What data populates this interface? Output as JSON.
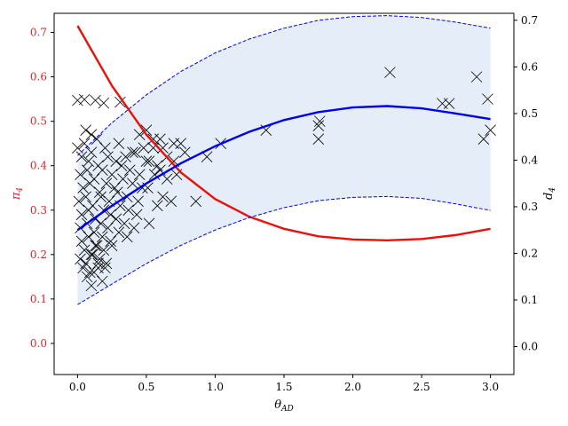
{
  "chart_data": {
    "type": "scatter",
    "title": "",
    "xlabel": "θAD",
    "xlabel_main": "θ",
    "xlabel_sub": "AD",
    "ylabel_left": "π4",
    "ylabel_left_main": "π",
    "ylabel_left_sub": "4",
    "ylabel_right": "d4",
    "ylabel_right_main": "d",
    "ylabel_right_sub": "4",
    "xlim": [
      -0.17,
      3.17
    ],
    "ylim_left": [
      -0.07,
      0.743
    ],
    "ylim_right": [
      -0.06,
      0.715
    ],
    "xticks": [
      "0.0",
      "0.5",
      "1.0",
      "1.5",
      "2.0",
      "2.5",
      "3.0"
    ],
    "xtick_values": [
      0.0,
      0.5,
      1.0,
      1.5,
      2.0,
      2.5,
      3.0
    ],
    "yticks_left": [
      "0.0",
      "0.1",
      "0.2",
      "0.3",
      "0.4",
      "0.5",
      "0.6",
      "0.7"
    ],
    "ytick_values_left": [
      0.0,
      0.1,
      0.2,
      0.3,
      0.4,
      0.5,
      0.6,
      0.7
    ],
    "yticks_right": [
      "0.0",
      "0.1",
      "0.2",
      "0.3",
      "0.4",
      "0.5",
      "0.6",
      "0.7"
    ],
    "ytick_values_right": [
      0.0,
      0.1,
      0.2,
      0.3,
      0.4,
      0.5,
      0.6,
      0.7
    ],
    "grid": false,
    "legend": "none",
    "colors": {
      "pi_curve": "#e8120c",
      "d_curve": "#0000ee",
      "band_fill": "#e5eef8",
      "markers": "#000000",
      "left_axis_text": "#d62728",
      "right_axis_text": "#000000"
    },
    "series": [
      {
        "axis": "left",
        "style": "line",
        "x": [
          0.0,
          0.25,
          0.5,
          0.75,
          1.0,
          1.25,
          1.5,
          1.75,
          2.0,
          2.25,
          2.5,
          2.75,
          3.0
        ],
        "y": [
          0.715,
          0.58,
          0.47,
          0.385,
          0.325,
          0.285,
          0.258,
          0.241,
          0.234,
          0.232,
          0.235,
          0.244,
          0.258
        ]
      },
      {
        "axis": "right",
        "style": "line",
        "x": [
          0.0,
          0.25,
          0.5,
          0.75,
          1.0,
          1.25,
          1.5,
          1.75,
          2.0,
          2.25,
          2.5,
          2.75,
          3.0
        ],
        "y": [
          0.25,
          0.302,
          0.35,
          0.393,
          0.43,
          0.461,
          0.486,
          0.503,
          0.513,
          0.516,
          0.511,
          0.5,
          0.488
        ]
      },
      {
        "axis": "right",
        "style": "dashed",
        "x": [
          0.0,
          0.25,
          0.5,
          0.75,
          1.0,
          1.25,
          1.5,
          1.75,
          2.0,
          2.25,
          2.5,
          2.75,
          3.0
        ],
        "y": [
          0.41,
          0.48,
          0.54,
          0.59,
          0.63,
          0.66,
          0.683,
          0.7,
          0.708,
          0.71,
          0.706,
          0.696,
          0.683
        ]
      },
      {
        "axis": "right",
        "style": "dashed",
        "x": [
          0.0,
          0.25,
          0.5,
          0.75,
          1.0,
          1.25,
          1.5,
          1.75,
          2.0,
          2.25,
          2.5,
          2.75,
          3.0
        ],
        "y": [
          0.09,
          0.134,
          0.178,
          0.217,
          0.25,
          0.277,
          0.298,
          0.313,
          0.32,
          0.322,
          0.318,
          0.306,
          0.292
        ]
      },
      {
        "axis": "left",
        "style": "markers",
        "x": [
          0.0,
          0.05,
          0.13,
          0.19,
          0.31,
          0.06,
          0.1,
          0.14,
          0.0,
          0.05,
          0.1,
          0.2,
          0.3,
          0.4,
          0.48,
          0.55,
          0.62,
          0.7,
          0.03,
          0.08,
          0.15,
          0.22,
          0.28,
          0.35,
          0.42,
          0.5,
          0.58,
          0.65,
          0.02,
          0.07,
          0.12,
          0.18,
          0.25,
          0.32,
          0.38,
          0.45,
          0.52,
          0.6,
          0.04,
          0.09,
          0.16,
          0.21,
          0.27,
          0.33,
          0.4,
          0.47,
          0.56,
          0.01,
          0.06,
          0.11,
          0.17,
          0.23,
          0.29,
          0.36,
          0.44,
          0.51,
          0.03,
          0.08,
          0.13,
          0.19,
          0.24,
          0.31,
          0.37,
          0.43,
          0.02,
          0.07,
          0.12,
          0.17,
          0.22,
          0.28,
          0.34,
          0.41,
          0.03,
          0.08,
          0.13,
          0.18,
          0.24,
          0.3,
          0.36,
          0.05,
          0.1,
          0.14,
          0.19,
          0.25,
          0.02,
          0.06,
          0.11,
          0.16,
          0.21,
          0.04,
          0.09,
          0.15,
          0.2,
          0.07,
          0.12,
          0.18,
          0.1,
          0.15,
          0.45,
          0.5,
          0.55,
          0.6,
          0.52,
          0.58,
          0.62,
          0.65,
          0.7,
          0.75,
          0.78,
          0.68,
          0.72,
          0.86,
          0.94,
          1.04,
          1.37,
          1.75,
          1.76,
          1.75,
          2.27,
          2.65,
          2.7,
          2.9,
          2.95,
          2.98,
          3.0
        ],
        "y": [
          0.547,
          0.549,
          0.547,
          0.541,
          0.543,
          0.48,
          0.47,
          0.46,
          0.44,
          0.45,
          0.43,
          0.44,
          0.45,
          0.43,
          0.44,
          0.46,
          0.44,
          0.45,
          0.42,
          0.41,
          0.4,
          0.42,
          0.41,
          0.42,
          0.43,
          0.41,
          0.4,
          0.42,
          0.38,
          0.39,
          0.37,
          0.39,
          0.38,
          0.4,
          0.39,
          0.38,
          0.41,
          0.39,
          0.35,
          0.36,
          0.34,
          0.36,
          0.35,
          0.37,
          0.36,
          0.35,
          0.38,
          0.32,
          0.33,
          0.31,
          0.33,
          0.32,
          0.34,
          0.33,
          0.32,
          0.35,
          0.29,
          0.3,
          0.28,
          0.3,
          0.29,
          0.31,
          0.3,
          0.29,
          0.26,
          0.27,
          0.25,
          0.27,
          0.26,
          0.28,
          0.27,
          0.26,
          0.23,
          0.24,
          0.22,
          0.24,
          0.23,
          0.25,
          0.24,
          0.21,
          0.2,
          0.22,
          0.21,
          0.22,
          0.19,
          0.18,
          0.2,
          0.19,
          0.18,
          0.17,
          0.16,
          0.18,
          0.17,
          0.15,
          0.16,
          0.14,
          0.13,
          0.17,
          0.47,
          0.48,
          0.44,
          0.46,
          0.27,
          0.31,
          0.33,
          0.37,
          0.41,
          0.45,
          0.43,
          0.32,
          0.38,
          0.32,
          0.42,
          0.45,
          0.48,
          0.49,
          0.5,
          0.46,
          0.61,
          0.54,
          0.54,
          0.6,
          0.46,
          0.55,
          0.48
        ]
      }
    ]
  }
}
